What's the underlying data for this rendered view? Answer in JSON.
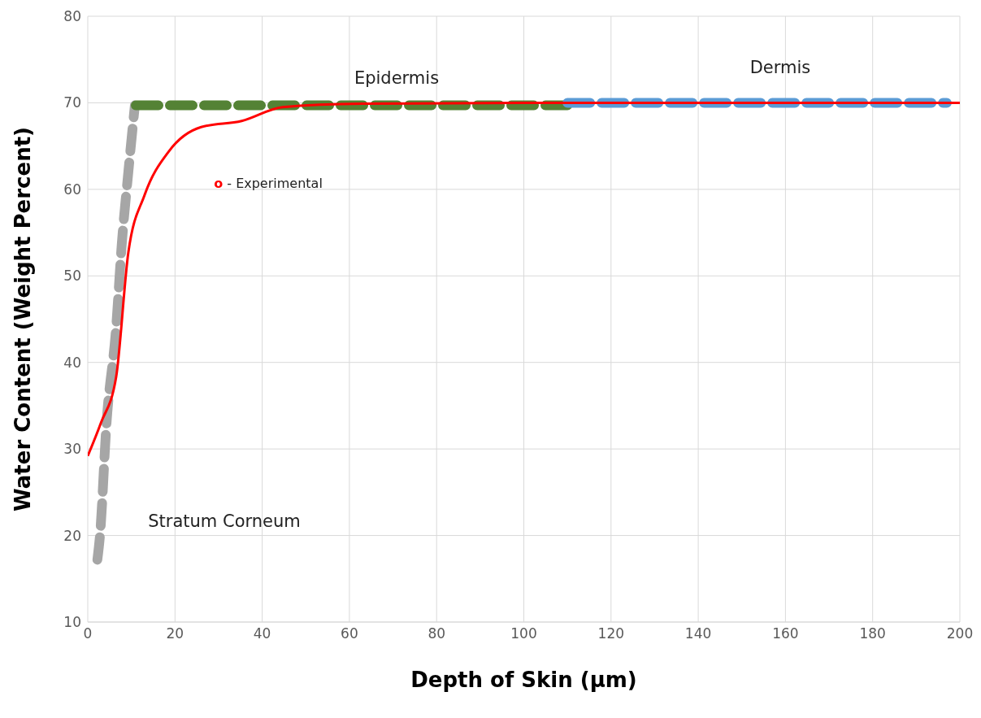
{
  "chart_data": {
    "type": "line",
    "xlabel": "Depth of Skin (µm)",
    "ylabel": "Water Content (Weight Percent)",
    "xlim": [
      0,
      200
    ],
    "xticks": [
      0,
      20,
      40,
      60,
      80,
      100,
      120,
      140,
      160,
      180,
      200
    ],
    "ylim": [
      10,
      80
    ],
    "yticks": [
      10,
      20,
      30,
      40,
      50,
      60,
      70,
      80
    ],
    "grid": true,
    "series": [
      {
        "color": "#a6a6a6",
        "line_style": "dashed",
        "x": [
          2.2,
          2.8,
          4.3,
          6.5,
          7.8,
          9.3,
          10.8
        ],
        "values": [
          17.2,
          20,
          33,
          44,
          53.7,
          62,
          69.7
        ]
      },
      {
        "color": "#548235",
        "line_style": "dashed",
        "x": [
          11,
          110
        ],
        "values": [
          69.7,
          69.7
        ]
      },
      {
        "color": "#5b9bd5",
        "line_style": "dashed",
        "x": [
          110,
          197
        ],
        "values": [
          70,
          70
        ]
      },
      {
        "color": "#ff0000",
        "line_style": "solid",
        "x": [
          0,
          3,
          6.5,
          9.3,
          13,
          18.6,
          26,
          35.3,
          44.7,
          63,
          100,
          200
        ],
        "values": [
          29.2,
          33,
          38.3,
          52.7,
          59.3,
          64.4,
          67.2,
          67.9,
          69.5,
          69.9,
          70,
          70
        ]
      }
    ],
    "annotations": [
      "Epidermis",
      "Dermis",
      "Stratum Corneum",
      "o - Experimental"
    ]
  }
}
